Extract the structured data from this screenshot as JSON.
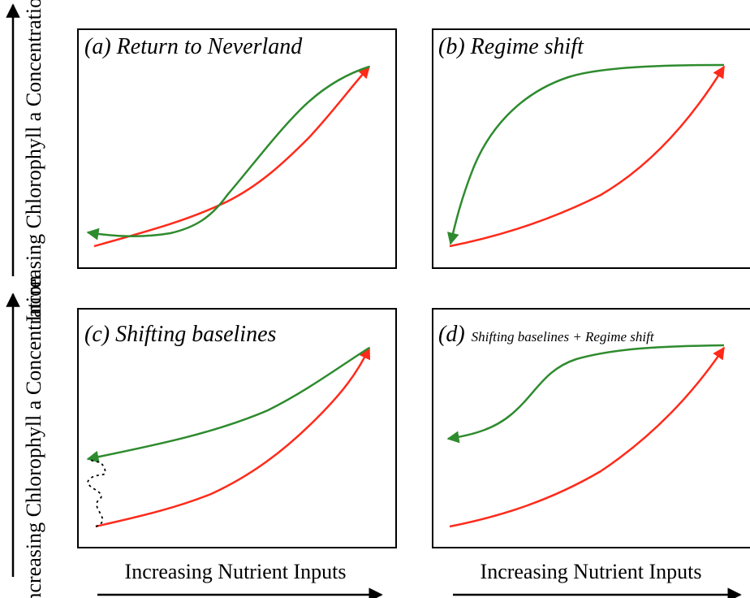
{
  "y_axis_label": "Increasing Chlorophyll a Concentration",
  "x_axis_label": "Increasing Nutrient Inputs",
  "panels": [
    {
      "id": "a",
      "label": "(a)",
      "title": "Return to Neverland"
    },
    {
      "id": "b",
      "label": "(b)",
      "title": "Regime shift"
    },
    {
      "id": "c",
      "label": "(c)",
      "title": "Shifting baselines"
    },
    {
      "id": "d",
      "label": "(d)",
      "title": "Shifting baselines + Regime shift"
    }
  ],
  "colors": {
    "eutrophication_path": "#ff2a1a",
    "recovery_path": "#2e8b2e",
    "axes": "#000000"
  }
}
